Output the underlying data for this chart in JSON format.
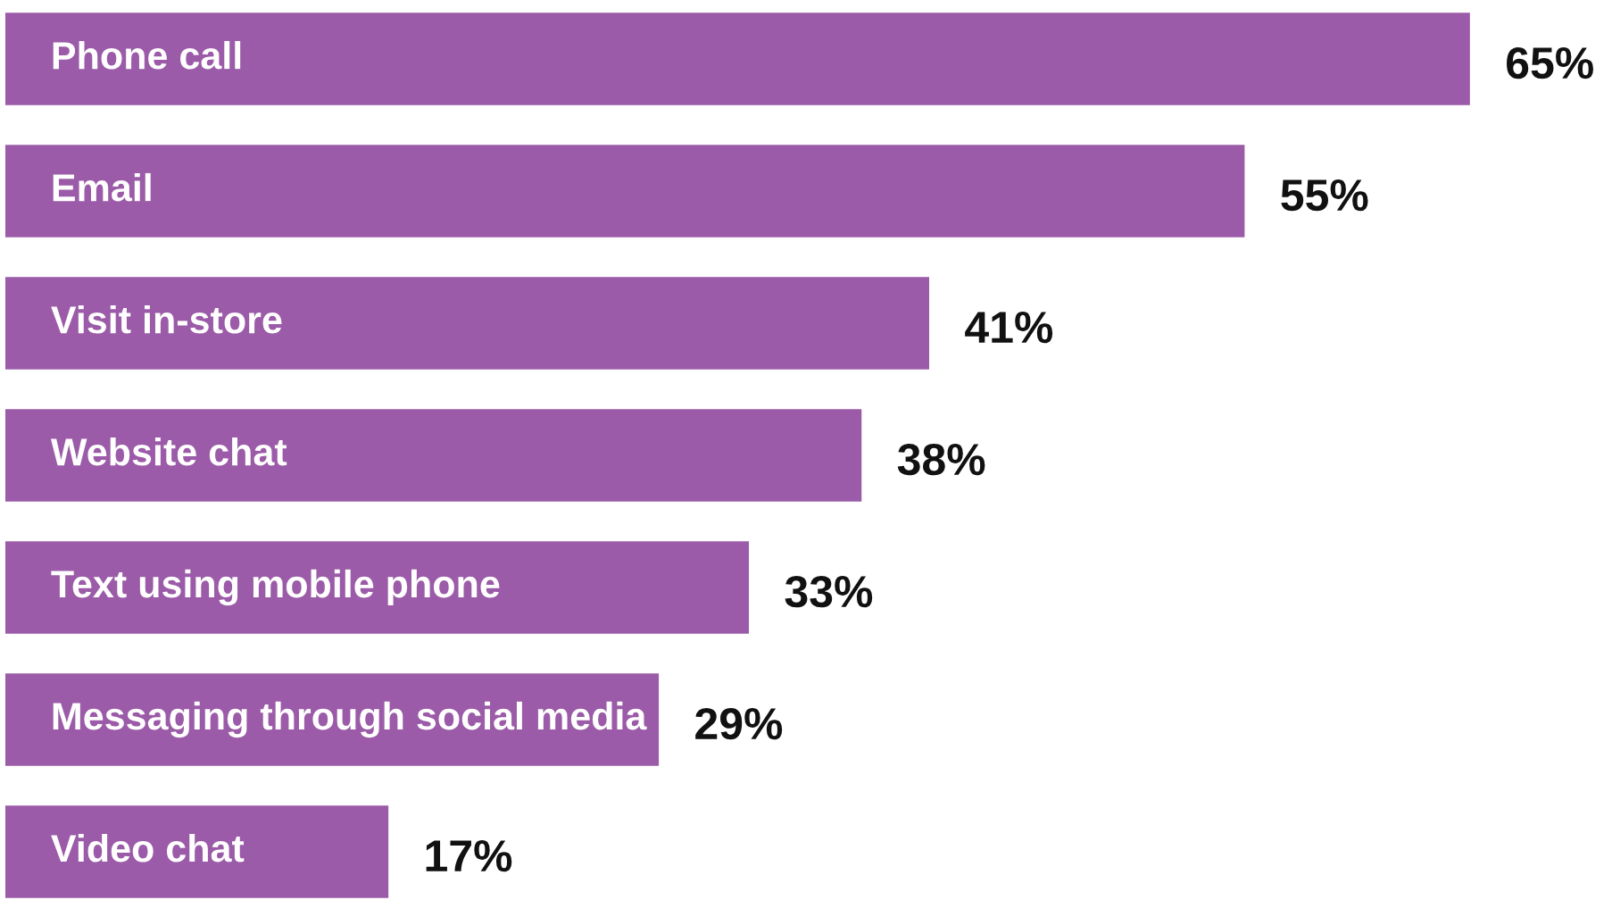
{
  "chart_data": {
    "type": "bar",
    "orientation": "horizontal",
    "categories": [
      "Phone call",
      "Email",
      "Visit in-store",
      "Website chat",
      "Text using mobile phone",
      "Messaging through social media",
      "Video chat"
    ],
    "values": [
      65,
      55,
      41,
      38,
      33,
      29,
      17
    ],
    "value_labels": [
      "65%",
      "55%",
      "41%",
      "38%",
      "33%",
      "29%",
      "17%"
    ],
    "color": "#9b5ba8",
    "tick_labels": false
  }
}
